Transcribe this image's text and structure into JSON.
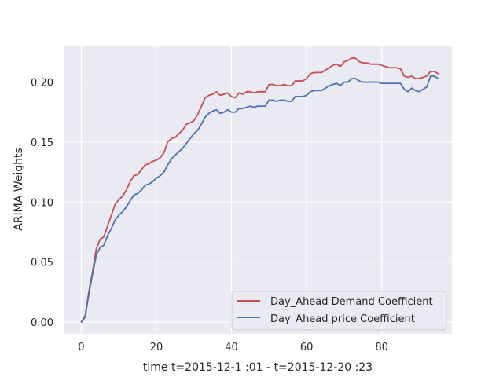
{
  "chart_data": {
    "type": "line",
    "title": "",
    "xlabel": "time t=2015-12-1 :01 - t=2015-12-20 :23",
    "ylabel": "ARIMA Weights",
    "xlim": [
      -4.7,
      98.7
    ],
    "ylim": [
      -0.0098,
      0.2305
    ],
    "x_ticks": [
      0,
      20,
      40,
      60,
      80
    ],
    "y_ticks": [
      0.0,
      0.05,
      0.1,
      0.15,
      0.2
    ],
    "y_tick_format": 2,
    "grid": true,
    "background": "#eaeaf2",
    "legend_position": "lower-right",
    "series": [
      {
        "name": "Day_Ahead Demand Coefficient",
        "color": "#c44e52",
        "values": [
          0.0,
          0.005,
          0.025,
          0.042,
          0.061,
          0.069,
          0.071,
          0.08,
          0.089,
          0.098,
          0.102,
          0.105,
          0.11,
          0.117,
          0.122,
          0.123,
          0.127,
          0.131,
          0.132,
          0.134,
          0.135,
          0.137,
          0.141,
          0.15,
          0.153,
          0.154,
          0.157,
          0.16,
          0.165,
          0.166,
          0.168,
          0.173,
          0.18,
          0.187,
          0.189,
          0.19,
          0.192,
          0.189,
          0.19,
          0.191,
          0.188,
          0.187,
          0.191,
          0.19,
          0.192,
          0.192,
          0.191,
          0.192,
          0.192,
          0.192,
          0.198,
          0.198,
          0.197,
          0.197,
          0.198,
          0.197,
          0.197,
          0.201,
          0.201,
          0.201,
          0.203,
          0.207,
          0.208,
          0.208,
          0.208,
          0.21,
          0.212,
          0.214,
          0.215,
          0.213,
          0.217,
          0.218,
          0.22,
          0.22,
          0.217,
          0.216,
          0.216,
          0.215,
          0.215,
          0.215,
          0.214,
          0.213,
          0.212,
          0.212,
          0.212,
          0.211,
          0.205,
          0.204,
          0.205,
          0.203,
          0.203,
          0.204,
          0.205,
          0.209,
          0.209,
          0.207
        ]
      },
      {
        "name": "Day_Ahead price Coefficient",
        "color": "#4c72b0",
        "values": [
          0.0,
          0.004,
          0.023,
          0.04,
          0.056,
          0.062,
          0.064,
          0.072,
          0.078,
          0.085,
          0.089,
          0.092,
          0.096,
          0.101,
          0.106,
          0.107,
          0.11,
          0.114,
          0.115,
          0.117,
          0.12,
          0.122,
          0.125,
          0.131,
          0.136,
          0.139,
          0.142,
          0.145,
          0.149,
          0.153,
          0.157,
          0.16,
          0.165,
          0.171,
          0.174,
          0.176,
          0.177,
          0.174,
          0.175,
          0.177,
          0.175,
          0.175,
          0.178,
          0.178,
          0.179,
          0.18,
          0.179,
          0.18,
          0.18,
          0.18,
          0.185,
          0.185,
          0.184,
          0.185,
          0.185,
          0.184,
          0.184,
          0.188,
          0.188,
          0.188,
          0.189,
          0.192,
          0.193,
          0.193,
          0.193,
          0.195,
          0.197,
          0.198,
          0.199,
          0.197,
          0.2,
          0.2,
          0.203,
          0.203,
          0.201,
          0.2,
          0.2,
          0.2,
          0.2,
          0.2,
          0.199,
          0.199,
          0.199,
          0.199,
          0.199,
          0.199,
          0.194,
          0.192,
          0.195,
          0.193,
          0.192,
          0.194,
          0.196,
          0.205,
          0.205,
          0.203
        ]
      }
    ]
  }
}
